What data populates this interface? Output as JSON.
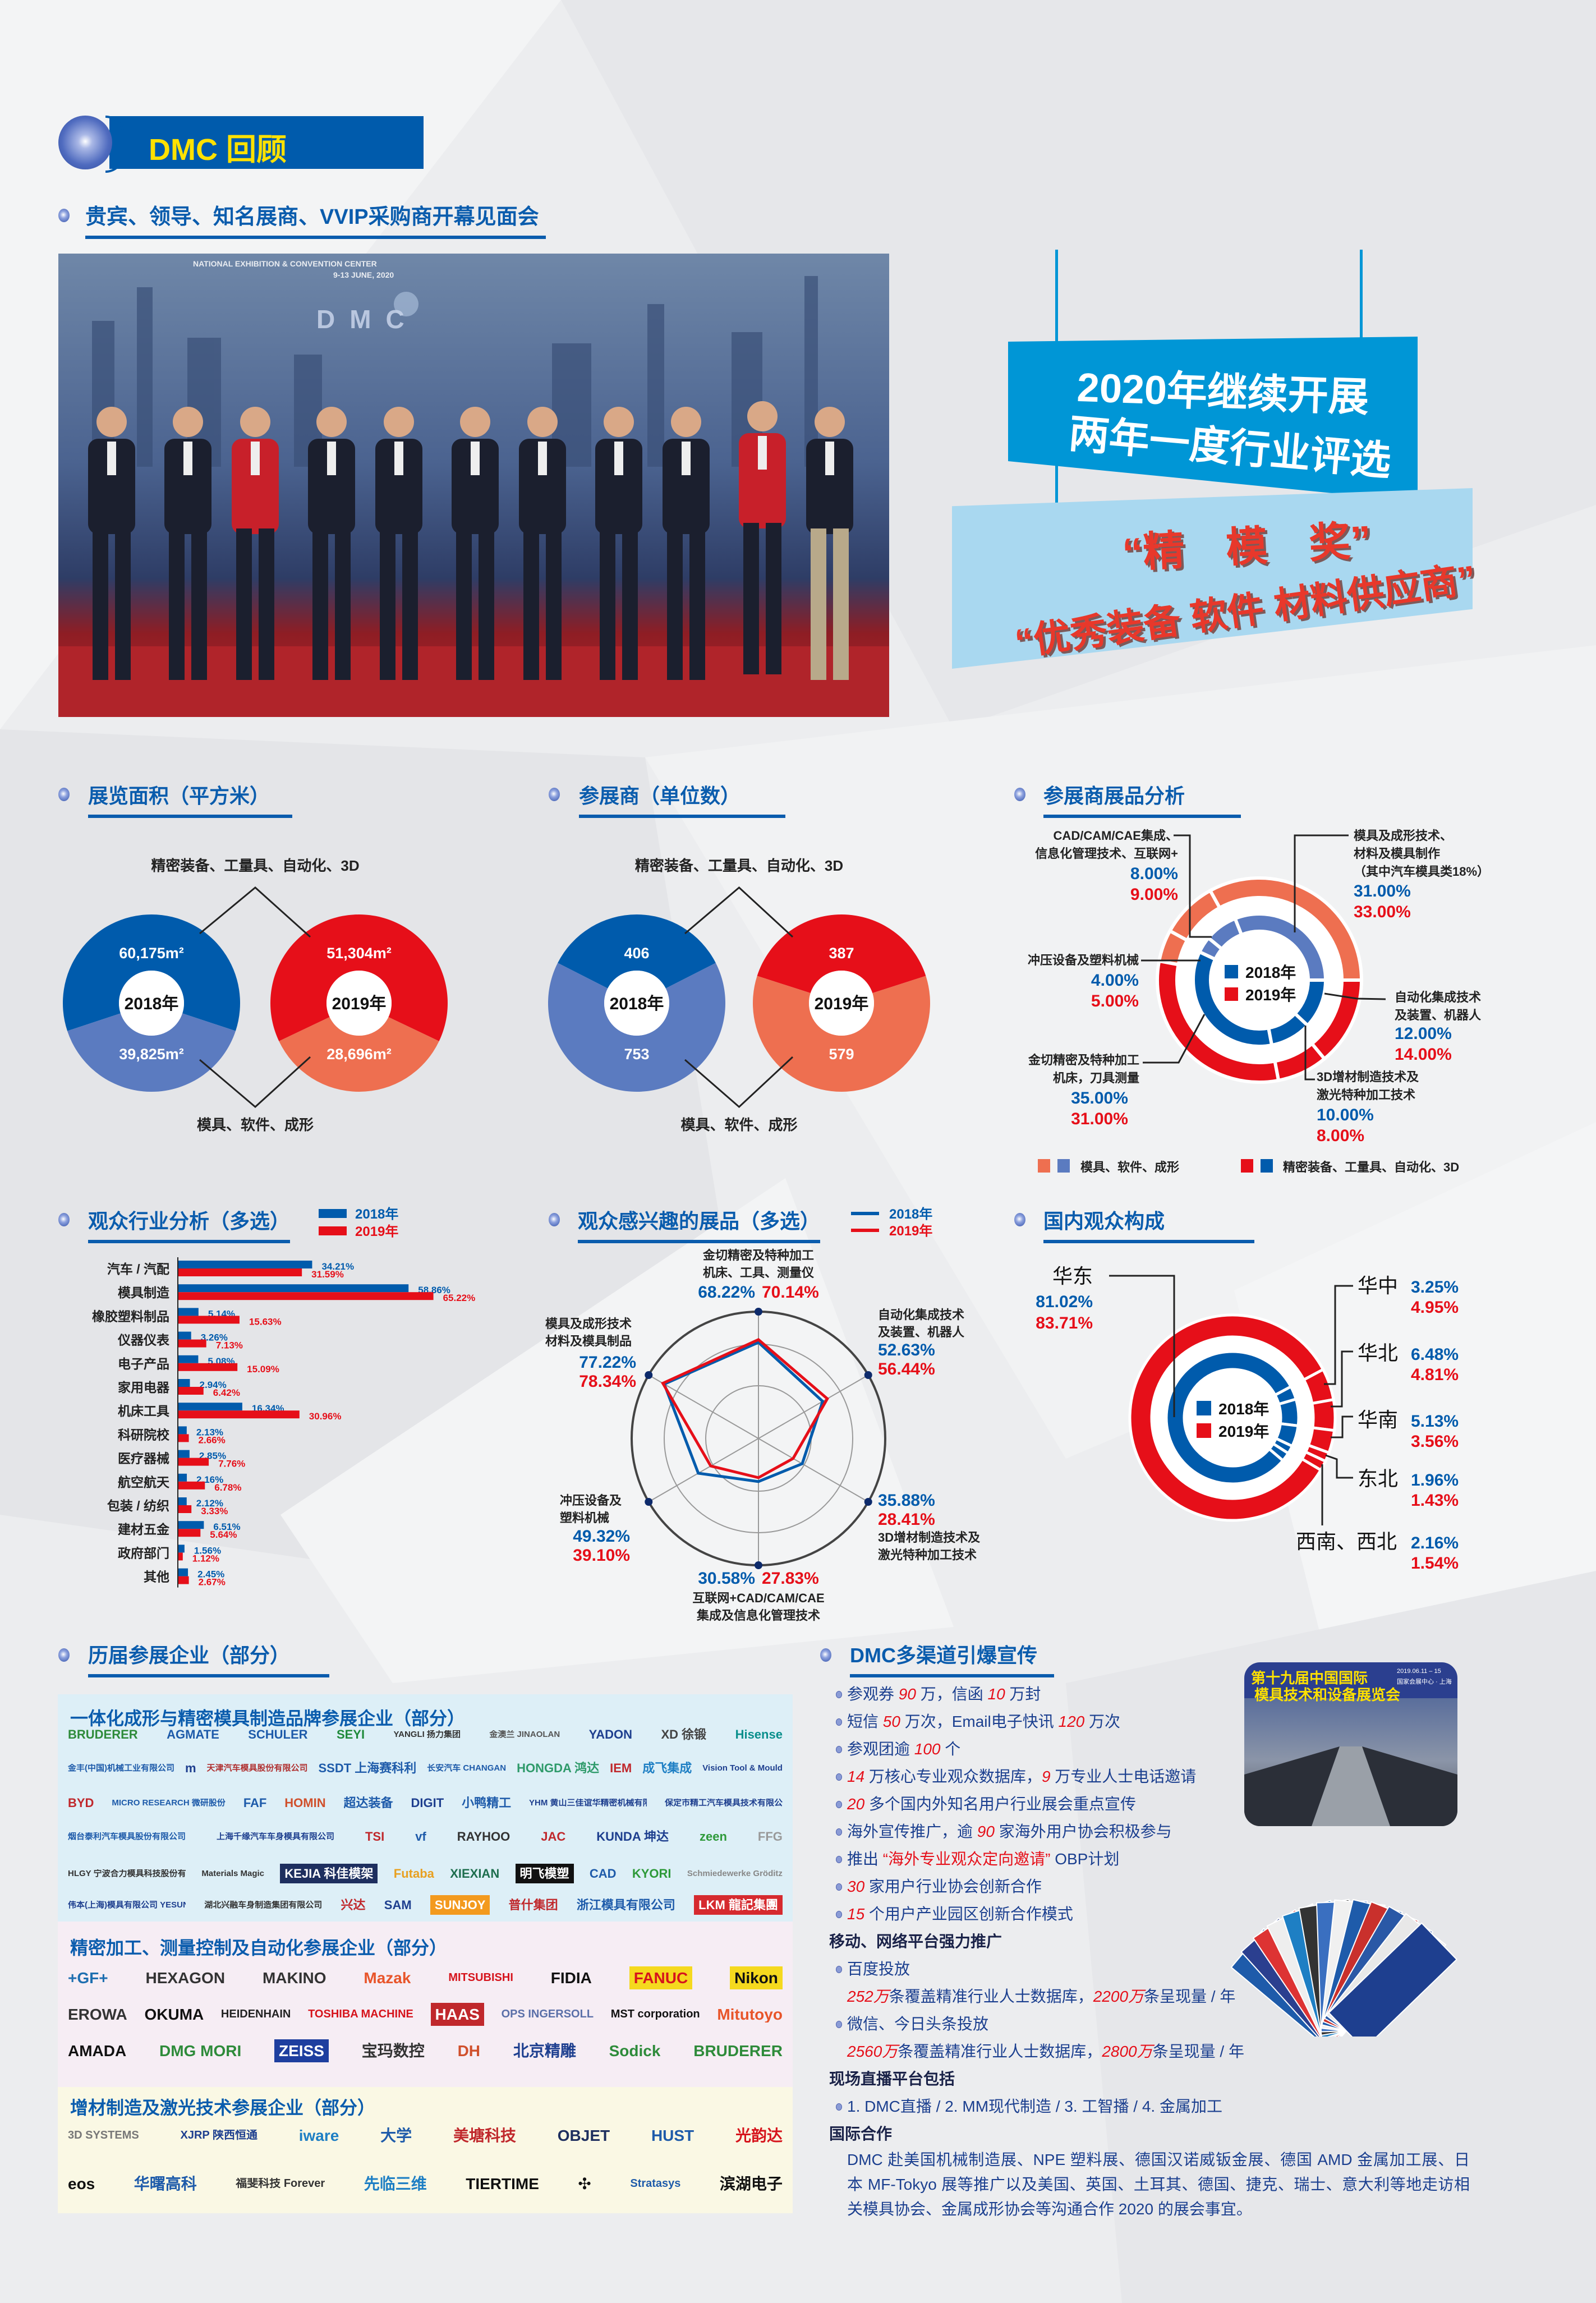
{
  "header": {
    "title": "DMC 回顾"
  },
  "opening": {
    "title": "贵宾、领导、知名展商、VVIP采购商开幕见面会",
    "photo_backdrop": [
      "NATIONAL EXHIBITION & CONVENTION CENTER",
      "9-13 JUNE, 2020",
      "DMC"
    ]
  },
  "award_banner": {
    "line1": "2020年继续开展",
    "line2": "两年一度行业评选",
    "award1": "“精　模　奖”",
    "award2": "“优秀装备 软件 材料供应商”"
  },
  "colors": {
    "blue_2018": "#005BAC",
    "light_blue_2018": "#5B7BC0",
    "red_2019": "#E60F19",
    "salmon_2019": "#EE6F50",
    "title_blue": "#0A5CAD"
  },
  "chart_data": [
    {
      "id": "exhibition_area",
      "type": "pie",
      "title": "展览面积（平方米）",
      "categories": [
        "精密装备、工量具、自动化、3D",
        "模具、软件、成形"
      ],
      "series": [
        {
          "name": "2018年",
          "values": [
            60175,
            39825
          ],
          "labels": [
            "60,175m²",
            "39,825m²"
          ],
          "colors": [
            "#005BAC",
            "#5B7BC0"
          ]
        },
        {
          "name": "2019年",
          "values": [
            51304,
            28696
          ],
          "labels": [
            "51,304m²",
            "28,696m²"
          ],
          "colors": [
            "#E60F19",
            "#EE6F50"
          ]
        }
      ]
    },
    {
      "id": "exhibitors",
      "type": "pie",
      "title": "参展商（单位数）",
      "categories": [
        "精密装备、工量具、自动化、3D",
        "模具、软件、成形"
      ],
      "series": [
        {
          "name": "2018年",
          "values": [
            406,
            753
          ],
          "labels": [
            "406",
            "753"
          ],
          "colors": [
            "#005BAC",
            "#5B7BC0"
          ]
        },
        {
          "name": "2019年",
          "values": [
            387,
            579
          ],
          "labels": [
            "387",
            "579"
          ],
          "colors": [
            "#E60F19",
            "#EE6F50"
          ]
        }
      ]
    },
    {
      "id": "product_analysis",
      "type": "pie",
      "title": "参展商展品分析",
      "categories": [
        {
          "label": [
            "模具及成形技术、",
            "材料及模具制作",
            "（其中汽车模具类18%）"
          ],
          "group": "模具、软件、成形"
        },
        {
          "label": [
            "CAD/CAM/CAE集成、",
            "信息化管理技术、互联网+"
          ],
          "group": "模具、软件、成形"
        },
        {
          "label": [
            "冲压设备及塑料机械"
          ],
          "group": "模具、软件、成形"
        },
        {
          "label": [
            "金切精密及特种加工",
            "机床，刀具测量"
          ],
          "group": "精密装备、工量具、自动化、3D"
        },
        {
          "label": [
            "3D增材制造技术及",
            "激光特种加工技术"
          ],
          "group": "精密装备、工量具、自动化、3D"
        },
        {
          "label": [
            "自动化集成技术",
            "及装置、机器人"
          ],
          "group": "精密装备、工量具、自动化、3D"
        }
      ],
      "series": [
        {
          "name": "2018年",
          "values": [
            31,
            8,
            4,
            35,
            10,
            12
          ],
          "unit": "%"
        },
        {
          "name": "2019年",
          "values": [
            33,
            9,
            5,
            31,
            8,
            14
          ],
          "unit": "%"
        }
      ],
      "legend": [
        {
          "label": "模具、软件、成形",
          "colors": [
            "#EE6F50",
            "#5B7BC0"
          ]
        },
        {
          "label": "精密装备、工量具、自动化、3D",
          "colors": [
            "#E60F19",
            "#005BAC"
          ]
        }
      ],
      "legend_placement": "bottom"
    },
    {
      "id": "audience_industry",
      "type": "bar",
      "orientation": "horizontal",
      "title": "观众行业分析（多选）",
      "categories": [
        "汽车 / 汽配",
        "模具制造",
        "橡胶塑料制品",
        "仪器仪表",
        "电子产品",
        "家用电器",
        "机床工具",
        "科研院校",
        "医疗器械",
        "航空航天",
        "包装 / 纺织",
        "建材五金",
        "政府部门",
        "其他"
      ],
      "series": [
        {
          "name": "2018年",
          "values": [
            34.21,
            58.86,
            5.14,
            3.26,
            5.08,
            2.94,
            16.34,
            2.13,
            2.85,
            2.16,
            2.12,
            6.51,
            1.56,
            2.45
          ],
          "color": "#005BAC"
        },
        {
          "name": "2019年",
          "values": [
            31.59,
            65.22,
            15.63,
            7.13,
            15.09,
            6.42,
            30.96,
            2.66,
            7.76,
            6.78,
            3.33,
            5.64,
            1.12,
            2.67
          ],
          "color": "#E60F19"
        }
      ],
      "unit": "%",
      "legend_placement": "top-right",
      "grid": false
    },
    {
      "id": "audience_interest",
      "type": "radar",
      "title": "观众感兴趣的展品（多选）",
      "categories": [
        [
          "金切精密及特种加工",
          "机床、工具、测量仪"
        ],
        [
          "自动化集成技术",
          "及装置、机器人"
        ],
        [
          "3D增材制造技术及",
          "激光特种加工技术"
        ],
        [
          "互联网+CAD/CAM/CAE",
          "集成及信息化管理技术"
        ],
        [
          "冲压设备及",
          "塑料机械"
        ],
        [
          "模具及成形技术",
          "材料及模具制品"
        ]
      ],
      "series": [
        {
          "name": "2018年",
          "values": [
            68.22,
            52.63,
            35.88,
            30.58,
            49.32,
            77.22
          ],
          "color": "#005BAC"
        },
        {
          "name": "2019年",
          "values": [
            70.14,
            56.44,
            28.41,
            27.83,
            39.1,
            78.34
          ],
          "color": "#E60F19"
        }
      ],
      "unit": "%",
      "rlim": [
        0,
        90
      ],
      "legend_placement": "top-right"
    },
    {
      "id": "domestic_audience",
      "type": "pie",
      "title": "国内观众构成",
      "categories": [
        "华东",
        "华中",
        "华北",
        "华南",
        "东北",
        "西南、西北"
      ],
      "series": [
        {
          "name": "2018年",
          "values": [
            81.02,
            3.25,
            6.48,
            5.13,
            1.96,
            2.16
          ],
          "color": "#005BAC"
        },
        {
          "name": "2019年",
          "values": [
            83.71,
            4.95,
            4.81,
            3.56,
            1.43,
            1.54
          ],
          "color": "#E60F19"
        }
      ],
      "unit": "%"
    }
  ],
  "exhibitors_section": {
    "title": "历届参展企业（部分）",
    "panels": [
      {
        "title": "一体化成形与精密模具制造品牌参展企业（部分）",
        "rows": [
          [
            {
              "n": "BRUDERER",
              "c": "#2E8B3A"
            },
            {
              "n": "AGMATE",
              "c": "#1E5BAA"
            },
            {
              "n": "SCHULER",
              "c": "#1E5BAA"
            },
            {
              "n": "SEYI",
              "c": "#1F8A3B"
            },
            {
              "n": "YANGLI 扬力集团",
              "c": "#333"
            },
            {
              "n": "金澳兰 JINAOLAN",
              "c": "#555"
            },
            {
              "n": "YADON",
              "c": "#1E3F8F"
            },
            {
              "n": "XD 徐锻",
              "c": "#444"
            },
            {
              "n": "Hisense",
              "c": "#0A8F8C"
            }
          ],
          [
            {
              "n": "金丰(中国)机械工业有限公司",
              "c": "#1E5BAA"
            },
            {
              "n": "m",
              "c": "#1E3F8F"
            },
            {
              "n": "天津汽车模具股份有限公司",
              "c": "#B03030"
            },
            {
              "n": "SSDT 上海赛科利",
              "c": "#1E5BAA"
            },
            {
              "n": "长安汽车 CHANGAN",
              "c": "#1E5BAA"
            },
            {
              "n": "HONGDA 鸿达",
              "c": "#2E9A6A"
            },
            {
              "n": "IEM",
              "c": "#C0282C"
            },
            {
              "n": "成飞集成",
              "c": "#1E7FC4"
            },
            {
              "n": "Vision Tool & Mould",
              "c": "#1E3F8F"
            }
          ],
          [
            {
              "n": "BYD",
              "c": "#C0282C"
            },
            {
              "n": "MICRO RESEARCH 微研股份",
              "c": "#1E5BAA"
            },
            {
              "n": "FAF",
              "c": "#1E5BAA"
            },
            {
              "n": "HOMIN",
              "c": "#D0502C"
            },
            {
              "n": "超达装备",
              "c": "#1E5BAA"
            },
            {
              "n": "DIGIT",
              "c": "#1E3F8F"
            },
            {
              "n": "小鸭精工",
              "c": "#1E5BAA"
            },
            {
              "n": "YHM 黄山三佳谊华精密机械有限公司",
              "c": "#1E3F8F"
            },
            {
              "n": "保定市精工汽车模具技术有限公司",
              "c": "#1E3F8F"
            }
          ],
          [
            {
              "n": "烟台泰利汽车模具股份有限公司",
              "c": "#1E5BAA"
            },
            {
              "n": "上海千缘汽车车身模具有限公司",
              "c": "#1E3F8F"
            },
            {
              "n": "TSI",
              "c": "#C0282C"
            },
            {
              "n": "vf",
              "c": "#1E5BAA"
            },
            {
              "n": "RAYHOO",
              "c": "#333"
            },
            {
              "n": "JAC",
              "c": "#C0282C"
            },
            {
              "n": "KUNDA 坤达",
              "c": "#1E3F8F"
            },
            {
              "n": "zeen",
              "c": "#2E9A3A"
            },
            {
              "n": "FFG",
              "c": "#999"
            }
          ],
          [
            {
              "n": "HLGY 宁波合力模具科技股份有限公司",
              "c": "#333"
            },
            {
              "n": "Materials Magic",
              "c": "#333"
            },
            {
              "n": "KEJIA 科佳模架",
              "c": "#fff",
              "bg": "#1E2F5F"
            },
            {
              "n": "Futaba",
              "c": "#E8A020"
            },
            {
              "n": "XIEXIAN",
              "c": "#1E6F4F"
            },
            {
              "n": "明飞模塑",
              "c": "#fff",
              "bg": "#111"
            },
            {
              "n": "CAD",
              "c": "#1E5BAA"
            },
            {
              "n": "KYORI",
              "c": "#2E9A3A"
            },
            {
              "n": "Schmiedewerke Gröditz",
              "c": "#888"
            }
          ],
          [
            {
              "n": "伟本(上海)模具有限公司 YESUN",
              "c": "#1E3F8F"
            },
            {
              "n": "湖北兴融车身制造集团有限公司",
              "c": "#333"
            },
            {
              "n": "兴达",
              "c": "#C0282C"
            },
            {
              "n": "SAM",
              "c": "#1E3F8F"
            },
            {
              "n": "SUNJOY",
              "c": "#fff",
              "bg": "#F39A1E"
            },
            {
              "n": "普什集团",
              "c": "#C0282C"
            },
            {
              "n": "浙江模具有限公司",
              "c": "#1E5BAA"
            },
            {
              "n": "LKM 龍記集團",
              "c": "#fff",
              "bg": "#D62A2F"
            }
          ]
        ]
      },
      {
        "title": "精密加工、测量控制及自动化参展企业（部分）",
        "rows": [
          [
            {
              "n": "+GF+",
              "c": "#1E6FB0"
            },
            {
              "n": "HEXAGON",
              "c": "#333"
            },
            {
              "n": "MAKINO",
              "c": "#333"
            },
            {
              "n": "Mazak",
              "c": "#E8552A"
            },
            {
              "n": "MITSUBISHI",
              "c": "#D6141C"
            },
            {
              "n": "FIDIA",
              "c": "#111"
            },
            {
              "n": "FANUC",
              "c": "#D6141C",
              "bg": "#F5D91E"
            },
            {
              "n": "Nikon",
              "c": "#111",
              "bg": "#F5D91E"
            }
          ],
          [
            {
              "n": "EROWA",
              "c": "#333"
            },
            {
              "n": "OKUMA",
              "c": "#111"
            },
            {
              "n": "HEIDENHAIN",
              "c": "#222"
            },
            {
              "n": "TOSHIBA MACHINE",
              "c": "#D6141C"
            },
            {
              "n": "HAAS",
              "c": "#fff",
              "bg": "#C0282C"
            },
            {
              "n": "OPS INGERSOLL",
              "c": "#5A6FA8"
            },
            {
              "n": "MST corporation",
              "c": "#111"
            },
            {
              "n": "Mitutoyo",
              "c": "#E8552A"
            }
          ],
          [
            {
              "n": "AMADA",
              "c": "#111"
            },
            {
              "n": "DMG MORI",
              "c": "#2E8B3A"
            },
            {
              "n": "ZEISS",
              "c": "#fff",
              "bg": "#1E3F9F"
            },
            {
              "n": "宝玛数控",
              "c": "#333"
            },
            {
              "n": "DH",
              "c": "#D0502C"
            },
            {
              "n": "北京精雕",
              "c": "#1E3F8F"
            },
            {
              "n": "Sodick",
              "c": "#2E8B3A"
            },
            {
              "n": "BRUDERER",
              "c": "#2E8B3A"
            }
          ]
        ]
      },
      {
        "title": "增材制造及激光技术参展企业（部分）",
        "rows": [
          [
            {
              "n": "3D SYSTEMS",
              "c": "#777"
            },
            {
              "n": "XJRP 陕西恒通",
              "c": "#1E3F8F"
            },
            {
              "n": "iware",
              "c": "#1E7FC4"
            },
            {
              "n": "大学",
              "c": "#1E5BAA"
            },
            {
              "n": "美塘科技",
              "c": "#C0282C"
            },
            {
              "n": "OBJET",
              "c": "#1E2F5F"
            },
            {
              "n": "HUST",
              "c": "#1E5BAA"
            },
            {
              "n": "光韵达",
              "c": "#D6141C"
            }
          ],
          [
            {
              "n": "eos",
              "c": "#111"
            },
            {
              "n": "华曙高科",
              "c": "#1E5BAA"
            },
            {
              "n": "福斐科技 Forever",
              "c": "#333"
            },
            {
              "n": "先临三维",
              "c": "#1E7FC4"
            },
            {
              "n": "TIERTIME",
              "c": "#111"
            },
            {
              "n": "✣",
              "c": "#111"
            },
            {
              "n": "Stratasys",
              "c": "#1E5BAA"
            },
            {
              "n": "滨湖电子",
              "c": "#111"
            }
          ]
        ]
      }
    ]
  },
  "promo": {
    "title": "DMC多渠道引爆宣传",
    "photo_text": [
      "第十九届中国国际",
      "模具技术和设备展览会",
      "2019.06.11 – 15",
      "国家会展中心 · 上海"
    ],
    "lines": [
      {
        "type": "bullet",
        "parts": [
          {
            "t": "参观券 "
          },
          {
            "t": "90",
            "hl": true
          },
          {
            "t": " 万，信函 "
          },
          {
            "t": "10",
            "hl": true
          },
          {
            "t": " 万封"
          }
        ]
      },
      {
        "type": "bullet",
        "parts": [
          {
            "t": "短信 "
          },
          {
            "t": "50",
            "hl": true
          },
          {
            "t": " 万次，Email电子快讯 "
          },
          {
            "t": "120",
            "hl": true
          },
          {
            "t": " 万次"
          }
        ]
      },
      {
        "type": "bullet",
        "parts": [
          {
            "t": "参观团逾 "
          },
          {
            "t": "100",
            "hl": true
          },
          {
            "t": " 个"
          }
        ]
      },
      {
        "type": "bullet",
        "parts": [
          {
            "t": "14",
            "hl": true
          },
          {
            "t": " 万核心专业观众数据库，"
          },
          {
            "t": "9",
            "hl": true
          },
          {
            "t": " 万专业人士电话邀请"
          }
        ]
      },
      {
        "type": "bullet",
        "parts": [
          {
            "t": "20",
            "hl": true
          },
          {
            "t": " 多个国内外知名用户行业展会重点宣传"
          }
        ]
      },
      {
        "type": "bullet",
        "parts": [
          {
            "t": "海外宣传推广，逾 "
          },
          {
            "t": "90",
            "hl": true
          },
          {
            "t": " 家海外用户协会积极参与"
          }
        ]
      },
      {
        "type": "bullet",
        "parts": [
          {
            "t": "推出 "
          },
          {
            "t": "“海外专业观众定向邀请”",
            "hl2": true
          },
          {
            "t": " OBP计划"
          }
        ]
      },
      {
        "type": "bullet",
        "parts": [
          {
            "t": "30",
            "hl": true
          },
          {
            "t": " 家用户行业协会创新合作"
          }
        ]
      },
      {
        "type": "bullet",
        "parts": [
          {
            "t": "15",
            "hl": true
          },
          {
            "t": " 个用户产业园区创新合作模式"
          }
        ]
      },
      {
        "type": "heading",
        "parts": [
          {
            "t": "移动、网络平台强力推广"
          }
        ]
      },
      {
        "type": "bullet",
        "parts": [
          {
            "t": "百度投放"
          }
        ]
      },
      {
        "type": "indent",
        "parts": [
          {
            "t": "252万",
            "hl": true
          },
          {
            "t": "条覆盖精准行业人士数据库，"
          },
          {
            "t": "2200万",
            "hl": true
          },
          {
            "t": "条呈现量 / 年"
          }
        ]
      },
      {
        "type": "bullet",
        "parts": [
          {
            "t": "微信、今日头条投放"
          }
        ]
      },
      {
        "type": "indent",
        "parts": [
          {
            "t": "2560万",
            "hl": true
          },
          {
            "t": "条覆盖精准行业人士数据库，"
          },
          {
            "t": "2800万",
            "hl": true
          },
          {
            "t": "条呈现量 / 年"
          }
        ]
      },
      {
        "type": "heading",
        "parts": [
          {
            "t": "现场直播平台包括"
          }
        ]
      },
      {
        "type": "bullet",
        "parts": [
          {
            "t": "1. DMC直播 / 2. MM现代制造 / 3. 工智播 / 4. 金属加工"
          }
        ]
      },
      {
        "type": "heading",
        "parts": [
          {
            "t": "国际合作"
          }
        ]
      }
    ],
    "international": "DMC 赴美国机械制造展、NPE 塑料展、德国汉诺威钣金展、德国 AMD 金属加工展、日本 MF-Tokyo 展等推广以及美国、英国、土耳其、德国、捷克、瑞士、意大利等地走访相关模具协会、金属成形协会等沟通合作 2020 的展会事宜。"
  }
}
